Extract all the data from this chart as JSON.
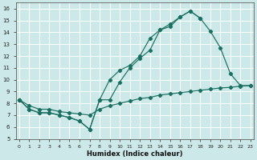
{
  "background_color": "#cce8e8",
  "grid_color": "#b8d8d8",
  "line_color": "#1a7060",
  "xlim": [
    -0.3,
    23.3
  ],
  "ylim": [
    5,
    16.5
  ],
  "xticks": [
    0,
    1,
    2,
    3,
    4,
    5,
    6,
    7,
    8,
    9,
    10,
    11,
    12,
    13,
    14,
    15,
    16,
    17,
    18,
    19,
    20,
    21,
    22,
    23
  ],
  "yticks": [
    5,
    6,
    7,
    8,
    9,
    10,
    11,
    12,
    13,
    14,
    15,
    16
  ],
  "xlabel": "Humidex (Indice chaleur)",
  "curve_top_x": [
    0,
    1,
    2,
    3,
    4,
    5,
    6,
    7,
    8,
    9,
    10,
    11,
    12,
    13,
    14,
    15,
    16,
    17,
    18,
    19,
    20,
    21,
    22,
    23
  ],
  "curve_top_y": [
    8.3,
    7.5,
    7.2,
    7.2,
    7.0,
    6.8,
    6.5,
    5.8,
    8.3,
    10.0,
    10.8,
    11.2,
    12.0,
    13.5,
    14.2,
    14.7,
    15.3,
    15.8,
    15.2,
    14.1,
    12.7,
    10.5,
    9.5,
    9.5
  ],
  "curve_mid_x": [
    0,
    1,
    2,
    3,
    4,
    5,
    6,
    7,
    8,
    9,
    10,
    11,
    12,
    13,
    14,
    15,
    16,
    17,
    18
  ],
  "curve_mid_y": [
    8.3,
    7.5,
    7.2,
    7.2,
    7.0,
    6.8,
    6.5,
    5.8,
    8.3,
    8.3,
    9.8,
    11.0,
    11.8,
    12.5,
    14.2,
    14.5,
    15.3,
    15.8,
    15.2
  ],
  "curve_bot_x": [
    0,
    1,
    2,
    3,
    4,
    5,
    6,
    7,
    8,
    9,
    10,
    11,
    12,
    13,
    14,
    15,
    16,
    17,
    18,
    19,
    20,
    21,
    22,
    23
  ],
  "curve_bot_y": [
    8.3,
    7.8,
    7.5,
    7.5,
    7.3,
    7.2,
    7.1,
    7.0,
    7.5,
    7.8,
    8.0,
    8.2,
    8.4,
    8.5,
    8.7,
    8.8,
    8.9,
    9.0,
    9.1,
    9.2,
    9.3,
    9.35,
    9.45,
    9.5
  ]
}
